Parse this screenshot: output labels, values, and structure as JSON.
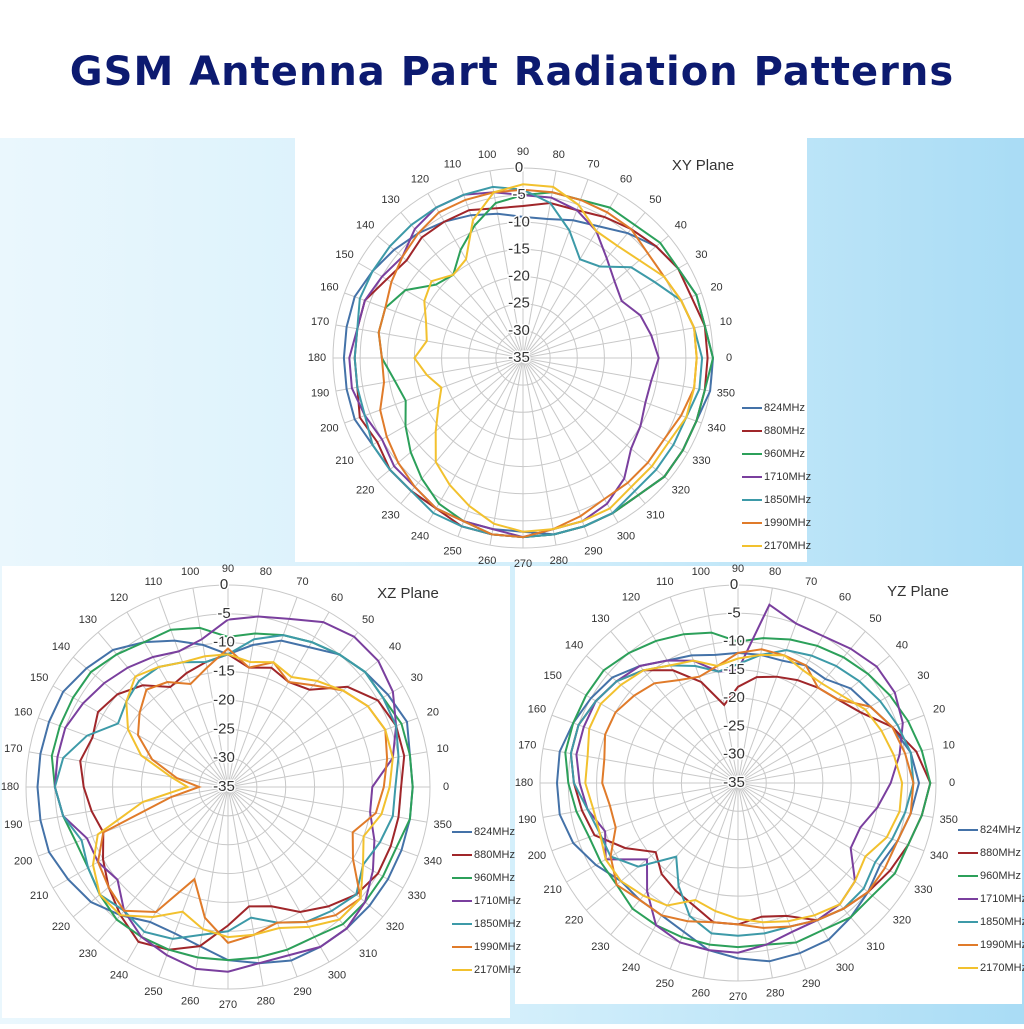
{
  "title": "GSM Antenna Part Radiation Patterns",
  "chart_data": [
    {
      "type": "polar",
      "title": "XY Plane",
      "x": [
        0,
        10,
        20,
        30,
        40,
        50,
        60,
        70,
        80,
        90,
        100,
        110,
        120,
        130,
        140,
        150,
        160,
        170,
        180,
        190,
        200,
        210,
        220,
        230,
        240,
        250,
        260,
        270,
        280,
        290,
        300,
        310,
        320,
        330,
        340,
        350
      ],
      "ylim": [
        -35,
        0
      ],
      "yticks": [
        0,
        -5,
        -10,
        -15,
        -20,
        -25,
        -30,
        -35
      ],
      "grid": true,
      "series": [
        {
          "name": "824MHz",
          "color": "#4472a8",
          "values": [
            0,
            -1,
            -1,
            -2,
            -3,
            -5,
            -7,
            -8,
            -9,
            -9,
            -8,
            -7,
            -6,
            -5,
            -4,
            -3,
            -2,
            -2,
            -2,
            -2,
            -2,
            -3,
            -3,
            -3,
            -3,
            -3,
            -3,
            -3,
            -2,
            -2,
            -2,
            -2,
            -1,
            -1,
            -1,
            0
          ]
        },
        {
          "name": "880MHz",
          "color": "#a0262a",
          "values": [
            -1,
            -1,
            -2,
            -2,
            -3,
            -4,
            -5,
            -6,
            -6,
            -7,
            -7,
            -6,
            -6,
            -6,
            -7,
            -6,
            -4,
            -4,
            -4,
            -4,
            -3,
            -4,
            -3,
            -3,
            -3,
            -2,
            -2,
            -2,
            -2,
            -2,
            -2,
            -2,
            -1,
            -1,
            -1,
            -1
          ]
        },
        {
          "name": "960MHz",
          "color": "#2ca05a",
          "values": [
            0,
            -1,
            -1,
            -2,
            -2,
            -3,
            -3,
            -4,
            -4,
            -5,
            -6,
            -9,
            -12,
            -15,
            -14,
            -10,
            -8,
            -8,
            -9,
            -11,
            -12,
            -10,
            -8,
            -6,
            -4,
            -3,
            -2,
            -2,
            -2,
            -2,
            -2,
            -2,
            -1,
            -1,
            -1,
            -1
          ]
        },
        {
          "name": "1710MHz",
          "color": "#7a3f9e",
          "values": [
            -10,
            -11,
            -12,
            -14,
            -13,
            -11,
            -8,
            -6,
            -5,
            -5,
            -4,
            -3,
            -3,
            -4,
            -6,
            -5,
            -4,
            -4,
            -3,
            -3,
            -4,
            -5,
            -4,
            -4,
            -3,
            -3,
            -3,
            -2,
            -3,
            -3,
            -4,
            -6,
            -9,
            -10,
            -11,
            -11
          ]
        },
        {
          "name": "1850MHz",
          "color": "#3d9aa8",
          "values": [
            -2,
            -3,
            -4,
            -7,
            -9,
            -13,
            -14,
            -10,
            -6,
            -4,
            -3,
            -3,
            -3,
            -3,
            -3,
            -3,
            -3,
            -4,
            -4,
            -4,
            -4,
            -3,
            -3,
            -3,
            -2,
            -2,
            -2,
            -2,
            -2,
            -2,
            -2,
            -3,
            -3,
            -3,
            -3,
            -2
          ]
        },
        {
          "name": "1990MHz",
          "color": "#e07b2a",
          "values": [
            -3,
            -3,
            -4,
            -5,
            -5,
            -4,
            -4,
            -4,
            -4,
            -4,
            -4,
            -4,
            -4,
            -5,
            -6,
            -7,
            -8,
            -8,
            -9,
            -9,
            -7,
            -6,
            -5,
            -4,
            -3,
            -3,
            -2,
            -2,
            -3,
            -4,
            -5,
            -5,
            -5,
            -5,
            -4,
            -3
          ]
        },
        {
          "name": "2170MHz",
          "color": "#f2c12e",
          "values": [
            -3,
            -3,
            -4,
            -5,
            -7,
            -8,
            -8,
            -5,
            -3,
            -3,
            -4,
            -8,
            -14,
            -15,
            -13,
            -14,
            -16,
            -17,
            -15,
            -17,
            -19,
            -17,
            -14,
            -10,
            -8,
            -6,
            -4,
            -3,
            -3,
            -3,
            -3,
            -4,
            -4,
            -4,
            -3,
            -3
          ]
        }
      ]
    },
    {
      "type": "polar",
      "title": "XZ Plane",
      "x": [
        0,
        10,
        20,
        30,
        40,
        50,
        60,
        70,
        80,
        90,
        100,
        110,
        120,
        130,
        140,
        150,
        160,
        170,
        180,
        190,
        200,
        210,
        220,
        230,
        240,
        250,
        260,
        270,
        280,
        290,
        300,
        310,
        320,
        330,
        340,
        350
      ],
      "ylim": [
        -35,
        0
      ],
      "yticks": [
        0,
        -5,
        -10,
        -15,
        -20,
        -25,
        -30,
        -35
      ],
      "grid": true,
      "series": [
        {
          "name": "824MHz",
          "color": "#4472a8",
          "values": [
            -3,
            -3,
            -2,
            -3,
            -4,
            -5,
            -7,
            -8,
            -10,
            -12,
            -10,
            -8,
            -6,
            -4,
            -3,
            -2,
            -2,
            -2,
            -2,
            -2,
            -2,
            -3,
            -4,
            -6,
            -8,
            -8,
            -7,
            -5,
            -4,
            -3,
            -3,
            -3,
            -3,
            -3,
            -3,
            -3
          ]
        },
        {
          "name": "880MHz",
          "color": "#a0262a",
          "values": [
            -5,
            -4,
            -4,
            -5,
            -8,
            -13,
            -14,
            -13,
            -14,
            -12,
            -13,
            -14,
            -15,
            -12,
            -10,
            -9,
            -10,
            -9,
            -10,
            -11,
            -12,
            -10,
            -8,
            -6,
            -4,
            -5,
            -7,
            -11,
            -14,
            -13,
            -10,
            -8,
            -6,
            -5,
            -5,
            -5
          ]
        },
        {
          "name": "960MHz",
          "color": "#2ca05a",
          "values": [
            -3,
            -3,
            -3,
            -4,
            -4,
            -5,
            -6,
            -7,
            -8,
            -9,
            -7,
            -6,
            -6,
            -5,
            -4,
            -4,
            -4,
            -4,
            -5,
            -6,
            -7,
            -7,
            -6,
            -5,
            -5,
            -5,
            -5,
            -5,
            -5,
            -5,
            -5,
            -4,
            -4,
            -4,
            -4,
            -3
          ]
        },
        {
          "name": "1710MHz",
          "color": "#7a3f9e",
          "values": [
            -10,
            -6,
            -4,
            -2,
            -1,
            -1,
            -2,
            -4,
            -5,
            -6,
            -9,
            -10,
            -9,
            -8,
            -7,
            -6,
            -5,
            -5,
            -5,
            -6,
            -9,
            -9,
            -10,
            -7,
            -5,
            -4,
            -3,
            -3,
            -4,
            -4,
            -3,
            -3,
            -4,
            -6,
            -8,
            -10
          ]
        },
        {
          "name": "1850MHz",
          "color": "#3d9aa8",
          "values": [
            -6,
            -5,
            -4,
            -4,
            -4,
            -5,
            -6,
            -7,
            -9,
            -12,
            -13,
            -12,
            -11,
            -11,
            -12,
            -13,
            -9,
            -6,
            -5,
            -6,
            -8,
            -7,
            -6,
            -7,
            -6,
            -7,
            -9,
            -10,
            -12,
            -10,
            -8,
            -7,
            -6,
            -8,
            -7,
            -6
          ]
        },
        {
          "name": "1990MHz",
          "color": "#e07b2a",
          "values": [
            -8,
            -7,
            -6,
            -7,
            -9,
            -12,
            -14,
            -12,
            -14,
            -11,
            -14,
            -16,
            -14,
            -13,
            -15,
            -17,
            -21,
            -26,
            -30,
            -25,
            -12,
            -9,
            -8,
            -7,
            -10,
            -18,
            -12,
            -8,
            -9,
            -10,
            -8,
            -6,
            -5,
            -10,
            -12,
            -9
          ]
        },
        {
          "name": "2170MHz",
          "color": "#f2c12e",
          "values": [
            -7,
            -6,
            -6,
            -7,
            -9,
            -11,
            -13,
            -12,
            -13,
            -12,
            -12,
            -12,
            -11,
            -10,
            -12,
            -15,
            -19,
            -25,
            -28,
            -20,
            -11,
            -8,
            -6,
            -6,
            -9,
            -12,
            -10,
            -9,
            -9,
            -9,
            -7,
            -5,
            -5,
            -8,
            -10,
            -8
          ]
        }
      ]
    },
    {
      "type": "polar",
      "title": "YZ Plane",
      "x": [
        0,
        10,
        20,
        30,
        40,
        50,
        60,
        70,
        80,
        90,
        100,
        110,
        120,
        130,
        140,
        150,
        160,
        170,
        180,
        190,
        200,
        210,
        220,
        230,
        240,
        250,
        260,
        270,
        280,
        290,
        300,
        310,
        320,
        330,
        340,
        350
      ],
      "ylim": [
        -35,
        0
      ],
      "yticks": [
        0,
        -5,
        -10,
        -15,
        -20,
        -25,
        -30,
        -35
      ],
      "grid": true,
      "series": [
        {
          "name": "824MHz",
          "color": "#4472a8",
          "values": [
            -3,
            -4,
            -6,
            -8,
            -9,
            -11,
            -11,
            -12,
            -12,
            -12,
            -12,
            -11,
            -10,
            -8,
            -6,
            -5,
            -4,
            -3,
            -3,
            -3,
            -4,
            -6,
            -8,
            -8,
            -8,
            -7,
            -5,
            -4,
            -3,
            -3,
            -3,
            -4,
            -5,
            -6,
            -5,
            -4
          ]
        },
        {
          "name": "880MHz",
          "color": "#a0262a",
          "values": [
            -1,
            -3,
            -6,
            -10,
            -12,
            -13,
            -14,
            -15,
            -16,
            -18,
            -21,
            -16,
            -12,
            -9,
            -7,
            -6,
            -5,
            -5,
            -6,
            -7,
            -8,
            -12,
            -16,
            -14,
            -13,
            -12,
            -10,
            -10,
            -11,
            -10,
            -7,
            -6,
            -5,
            -4,
            -3,
            -2
          ]
        },
        {
          "name": "960MHz",
          "color": "#2ca05a",
          "values": [
            -1,
            -2,
            -3,
            -4,
            -5,
            -6,
            -7,
            -8,
            -9,
            -10,
            -8,
            -7,
            -6,
            -5,
            -4,
            -4,
            -4,
            -4,
            -5,
            -6,
            -7,
            -7,
            -7,
            -6,
            -6,
            -6,
            -6,
            -6,
            -6,
            -5,
            -5,
            -4,
            -4,
            -3,
            -3,
            -2
          ]
        },
        {
          "name": "1710MHz",
          "color": "#7a3f9e",
          "values": [
            -8,
            -6,
            -4,
            -3,
            -3,
            -4,
            -5,
            -5,
            -3,
            -15,
            -15,
            -12,
            -10,
            -8,
            -7,
            -6,
            -6,
            -6,
            -7,
            -8,
            -10,
            -8,
            -14,
            -10,
            -6,
            -5,
            -5,
            -5,
            -6,
            -7,
            -7,
            -7,
            -8,
            -12,
            -12,
            -10
          ]
        },
        {
          "name": "1850MHz",
          "color": "#3d9aa8",
          "values": [
            -4,
            -4,
            -5,
            -6,
            -7,
            -8,
            -9,
            -10,
            -12,
            -14,
            -15,
            -13,
            -11,
            -9,
            -7,
            -6,
            -5,
            -5,
            -6,
            -8,
            -9,
            -9,
            -12,
            -18,
            -14,
            -10,
            -8,
            -8,
            -8,
            -8,
            -7,
            -6,
            -6,
            -7,
            -6,
            -5
          ]
        },
        {
          "name": "1990MHz",
          "color": "#e07b2a",
          "values": [
            -4,
            -5,
            -6,
            -8,
            -12,
            -13,
            -11,
            -11,
            -11,
            -12,
            -14,
            -15,
            -14,
            -12,
            -11,
            -10,
            -10,
            -11,
            -11,
            -12,
            -12,
            -9,
            -7,
            -8,
            -8,
            -9,
            -10,
            -10,
            -9,
            -8,
            -7,
            -6,
            -5,
            -5,
            -5,
            -4
          ]
        },
        {
          "name": "2170MHz",
          "color": "#f2c12e",
          "values": [
            -6,
            -7,
            -8,
            -9,
            -11,
            -12,
            -12,
            -11,
            -12,
            -13,
            -14,
            -12,
            -11,
            -9,
            -8,
            -7,
            -7,
            -8,
            -8,
            -9,
            -9,
            -8,
            -8,
            -9,
            -10,
            -13,
            -12,
            -11,
            -10,
            -9,
            -8,
            -7,
            -8,
            -9,
            -7,
            -6
          ]
        }
      ]
    }
  ]
}
